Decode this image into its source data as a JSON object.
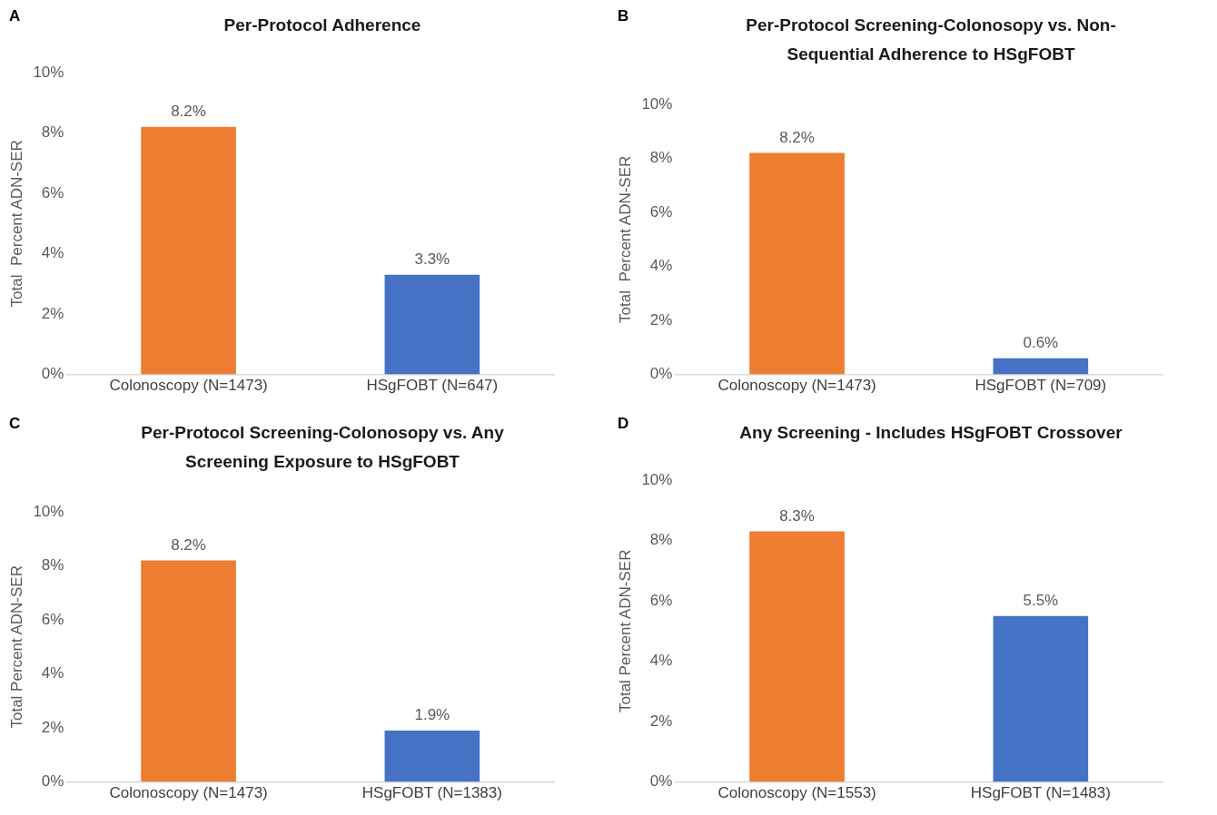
{
  "chart_data": [
    {
      "type": "bar",
      "title": "Per-Protocol Adherence",
      "annotations": [
        "A"
      ],
      "ylabel": "Total  Percent ADN-SER",
      "categories": [
        "Colonoscopy (N=1473)",
        "HSgFOBT (N=647)"
      ],
      "values": [
        8.2,
        3.3
      ],
      "colors": [
        "#ed7d31",
        "#4472c4"
      ],
      "value_labels": [
        "8.2%",
        "3.3%"
      ],
      "ylim": [
        0,
        10
      ],
      "yticks": [
        {
          "value": 0,
          "label": "0%"
        },
        {
          "value": 2,
          "label": "2%"
        },
        {
          "value": 4,
          "label": "4%"
        },
        {
          "value": 6,
          "label": "6%"
        },
        {
          "value": 8,
          "label": "8%"
        },
        {
          "value": 10,
          "label": "10%"
        }
      ],
      "grid": false
    },
    {
      "type": "bar",
      "title": "Per-Protocol Screening-Colonosopy vs. Non-Sequential Adherence to HSgFOBT",
      "annotations": [
        "B"
      ],
      "ylabel": "Total  Percent ADN-SER",
      "categories": [
        "Colonoscopy (N=1473)",
        "HSgFOBT (N=709)"
      ],
      "values": [
        8.2,
        0.6
      ],
      "colors": [
        "#ed7d31",
        "#4472c4"
      ],
      "value_labels": [
        "8.2%",
        "0.6%"
      ],
      "ylim": [
        0,
        10
      ],
      "yticks": [
        {
          "value": 0,
          "label": "0%"
        },
        {
          "value": 2,
          "label": "2%"
        },
        {
          "value": 4,
          "label": "4%"
        },
        {
          "value": 6,
          "label": "6%"
        },
        {
          "value": 8,
          "label": "8%"
        },
        {
          "value": 10,
          "label": "10%"
        }
      ],
      "grid": false
    },
    {
      "type": "bar",
      "title": "Per-Protocol Screening-Colonosopy vs. Any Screening Exposure to HSgFOBT",
      "annotations": [
        "C"
      ],
      "ylabel": "Total Percent ADN-SER",
      "categories": [
        "Colonoscopy (N=1473)",
        "HSgFOBT (N=1383)"
      ],
      "values": [
        8.2,
        1.9
      ],
      "colors": [
        "#ed7d31",
        "#4472c4"
      ],
      "value_labels": [
        "8.2%",
        "1.9%"
      ],
      "ylim": [
        0,
        10
      ],
      "yticks": [
        {
          "value": 0,
          "label": "0%"
        },
        {
          "value": 2,
          "label": "2%"
        },
        {
          "value": 4,
          "label": "4%"
        },
        {
          "value": 6,
          "label": "6%"
        },
        {
          "value": 8,
          "label": "8%"
        },
        {
          "value": 10,
          "label": "10%"
        }
      ],
      "grid": false
    },
    {
      "type": "bar",
      "title": "Any Screening - Includes HSgFOBT Crossover",
      "annotations": [
        "D"
      ],
      "ylabel": "Total Percent ADN-SER",
      "categories": [
        "Colonoscopy (N=1553)",
        "HSgFOBT (N=1483)"
      ],
      "values": [
        8.3,
        5.5
      ],
      "colors": [
        "#ed7d31",
        "#4472c4"
      ],
      "value_labels": [
        "8.3%",
        "5.5%"
      ],
      "ylim": [
        0,
        10
      ],
      "yticks": [
        {
          "value": 0,
          "label": "0%"
        },
        {
          "value": 2,
          "label": "2%"
        },
        {
          "value": 4,
          "label": "4%"
        },
        {
          "value": 6,
          "label": "6%"
        },
        {
          "value": 8,
          "label": "8%"
        },
        {
          "value": 10,
          "label": "10%"
        }
      ],
      "grid": false
    }
  ]
}
